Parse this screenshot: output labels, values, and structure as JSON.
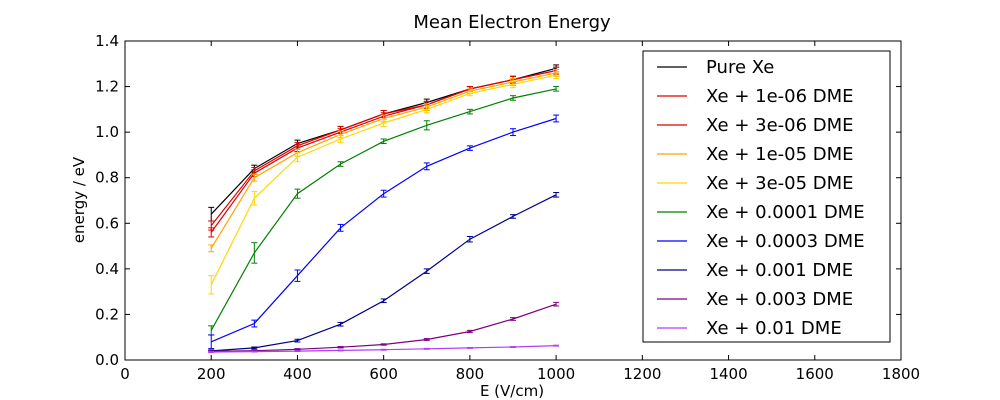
{
  "chart_data": {
    "type": "line",
    "title": "Mean Electron Energy",
    "xlabel": "E (V/cm)",
    "ylabel": "energy / eV",
    "xlim": [
      0,
      1800
    ],
    "ylim": [
      0.0,
      1.4
    ],
    "xticks": [
      "0",
      "200",
      "400",
      "600",
      "800",
      "1000",
      "1200",
      "1400",
      "1600",
      "1800"
    ],
    "yticks": [
      "0.0",
      "0.2",
      "0.4",
      "0.6",
      "0.8",
      "1.0",
      "1.2",
      "1.4"
    ],
    "grid": false,
    "legend_position": "top-right",
    "x": [
      200,
      300,
      400,
      500,
      600,
      700,
      800,
      900,
      1000
    ],
    "series": [
      {
        "name": "Pure Xe",
        "color": "#000000",
        "values": [
          0.64,
          0.84,
          0.95,
          1.01,
          1.08,
          1.13,
          1.19,
          1.23,
          1.28
        ],
        "errors": [
          0.03,
          0.015,
          0.015,
          0.015,
          0.015,
          0.015,
          0.01,
          0.015,
          0.015
        ]
      },
      {
        "name": "Xe + 1e-06 DME",
        "color": "#e00000",
        "values": [
          0.59,
          0.83,
          0.94,
          1.01,
          1.08,
          1.12,
          1.19,
          1.23,
          1.27
        ],
        "errors": [
          0.02,
          0.015,
          0.015,
          0.015,
          0.015,
          0.015,
          0.01,
          0.015,
          0.015
        ]
      },
      {
        "name": "Xe + 3e-06 DME",
        "color": "#e00000",
        "values": [
          0.56,
          0.82,
          0.93,
          1.0,
          1.07,
          1.12,
          1.19,
          1.23,
          1.27
        ],
        "errors": [
          0.02,
          0.015,
          0.015,
          0.015,
          0.015,
          0.015,
          0.01,
          0.015,
          0.015
        ]
      },
      {
        "name": "Xe + 1e-05 DME",
        "color": "#ffa500",
        "values": [
          0.49,
          0.8,
          0.91,
          0.99,
          1.06,
          1.11,
          1.18,
          1.22,
          1.26
        ],
        "errors": [
          0.015,
          0.015,
          0.015,
          0.015,
          0.015,
          0.015,
          0.01,
          0.015,
          0.015
        ]
      },
      {
        "name": "Xe + 3e-05 DME",
        "color": "#ffd700",
        "values": [
          0.33,
          0.71,
          0.89,
          0.97,
          1.04,
          1.1,
          1.17,
          1.21,
          1.25
        ],
        "errors": [
          0.04,
          0.03,
          0.02,
          0.015,
          0.015,
          0.015,
          0.01,
          0.015,
          0.015
        ]
      },
      {
        "name": "Xe + 0.0001 DME",
        "color": "#008000",
        "values": [
          0.13,
          0.47,
          0.73,
          0.86,
          0.96,
          1.03,
          1.09,
          1.15,
          1.19
        ],
        "errors": [
          0.02,
          0.045,
          0.02,
          0.01,
          0.01,
          0.02,
          0.01,
          0.01,
          0.01
        ]
      },
      {
        "name": "Xe + 0.0003 DME",
        "color": "#0000ff",
        "values": [
          0.08,
          0.16,
          0.37,
          0.58,
          0.73,
          0.85,
          0.93,
          1.0,
          1.06
        ],
        "errors": [
          0.03,
          0.015,
          0.025,
          0.015,
          0.015,
          0.015,
          0.01,
          0.015,
          0.015
        ]
      },
      {
        "name": "Xe + 0.001 DME",
        "color": "#00008b",
        "values": [
          0.04,
          0.053,
          0.085,
          0.157,
          0.26,
          0.39,
          0.53,
          0.63,
          0.725
        ],
        "errors": [
          0.004,
          0.004,
          0.006,
          0.008,
          0.008,
          0.01,
          0.012,
          0.008,
          0.01
        ]
      },
      {
        "name": "Xe + 0.003 DME",
        "color": "#800080",
        "values": [
          0.038,
          0.041,
          0.047,
          0.056,
          0.068,
          0.09,
          0.125,
          0.18,
          0.245
        ],
        "errors": [
          0.003,
          0.003,
          0.003,
          0.003,
          0.003,
          0.004,
          0.005,
          0.006,
          0.008
        ]
      },
      {
        "name": "Xe + 0.01 DME",
        "color": "#b03cff",
        "values": [
          0.035,
          0.037,
          0.039,
          0.042,
          0.045,
          0.049,
          0.053,
          0.057,
          0.063
        ],
        "errors": [
          0.002,
          0.002,
          0.002,
          0.002,
          0.002,
          0.002,
          0.002,
          0.002,
          0.002
        ]
      }
    ]
  }
}
